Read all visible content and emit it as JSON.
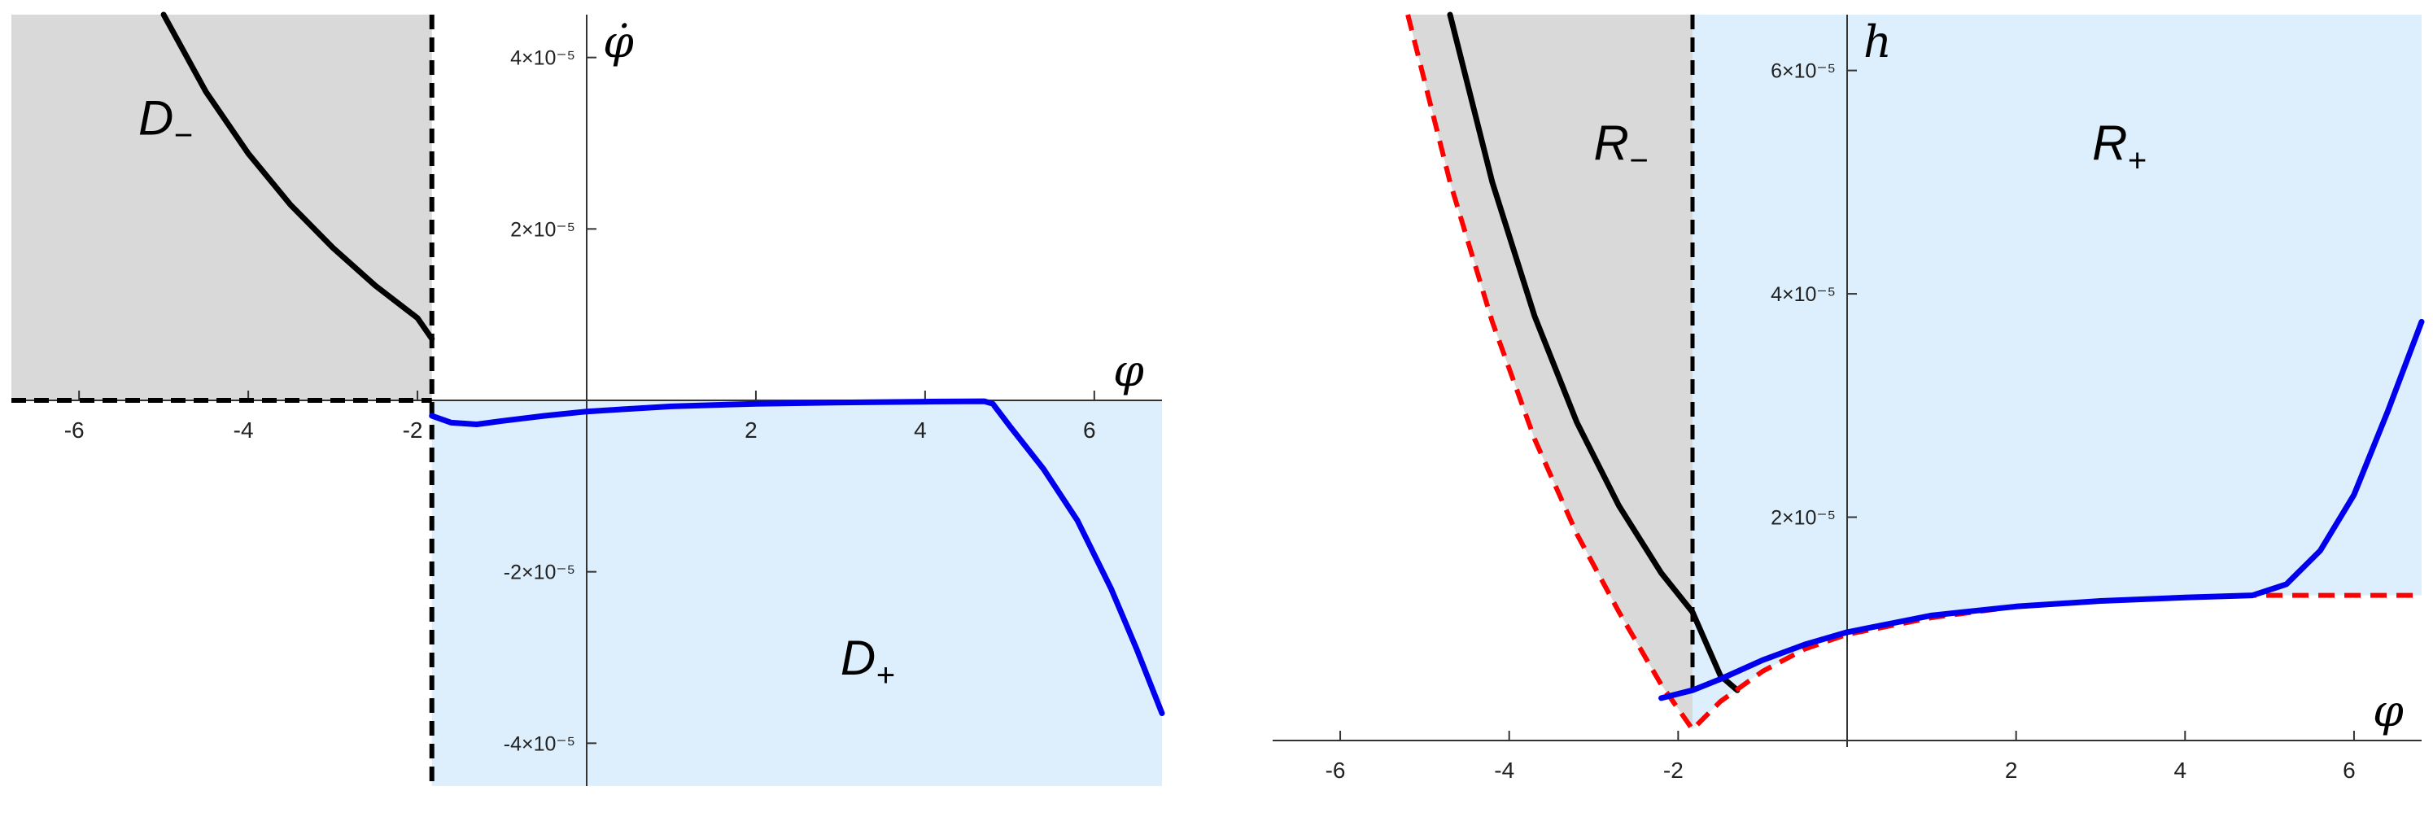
{
  "chart_data": [
    {
      "type": "line",
      "xlabel": "φ",
      "ylabel": "φ̇",
      "xlim": [
        -6.8,
        6.8
      ],
      "ylim": [
        -4.5e-05,
        4.5e-05
      ],
      "x_ticks": [
        -6,
        -4,
        -2,
        2,
        4,
        6
      ],
      "x_tick_labels": [
        "-6",
        "-4",
        "-2",
        "2",
        "4",
        "6"
      ],
      "y_ticks": [
        -4e-05,
        -2e-05,
        2e-05,
        4e-05
      ],
      "y_tick_labels": [
        "-4×10⁻⁵",
        "-2×10⁻⁵",
        "2×10⁻⁵",
        "4×10⁻⁵"
      ],
      "regions": [
        {
          "label": "D",
          "sign": "−",
          "color": "#d9d9d9",
          "x_range": [
            -6.8,
            -1.83
          ],
          "y_range": [
            0,
            4.5e-05
          ]
        },
        {
          "label": "D",
          "sign": "+",
          "color": "#ddeefc",
          "x_range": [
            -1.83,
            6.8
          ],
          "y_range": [
            -4.5e-05,
            0
          ]
        }
      ],
      "boundary_color": "#000000",
      "series": [
        {
          "color": "#000000",
          "style": "solid",
          "x": [
            -5.0,
            -4.5,
            -4.0,
            -3.5,
            -3.0,
            -2.5,
            -2.0,
            -1.83
          ],
          "y": [
            4.5e-05,
            3.6e-05,
            2.88e-05,
            2.28e-05,
            1.78e-05,
            1.34e-05,
            9.6e-06,
            7.2e-06
          ]
        },
        {
          "color": "#0000ee",
          "style": "solid",
          "x": [
            -1.83,
            -1.6,
            -1.3,
            -1.0,
            -0.5,
            0,
            0.5,
            1.0,
            2.0,
            3.0,
            4.0,
            4.7,
            4.8,
            5.0,
            5.4,
            5.8,
            6.2,
            6.5,
            6.8
          ],
          "y": [
            -1.8e-06,
            -2.6e-06,
            -2.8e-06,
            -2.4e-06,
            -1.8e-06,
            -1.3e-06,
            -1e-06,
            -7e-07,
            -4e-07,
            -2.5e-07,
            -1.5e-07,
            -1e-07,
            -4e-07,
            -3e-06,
            -8e-06,
            -1.4e-05,
            -2.2e-05,
            -2.9e-05,
            -3.65e-05
          ]
        }
      ]
    },
    {
      "type": "line",
      "xlabel": "φ",
      "ylabel": "h",
      "xlim": [
        -6.8,
        6.8
      ],
      "ylim": [
        0,
        6.5e-05
      ],
      "x_ticks": [
        -6,
        -4,
        -2,
        2,
        4,
        6
      ],
      "x_tick_labels": [
        "-6",
        "-4",
        "-2",
        "2",
        "4",
        "6"
      ],
      "y_ticks": [
        2e-05,
        4e-05,
        6e-05
      ],
      "y_tick_labels": [
        "2×10⁻⁵",
        "4×10⁻⁵",
        "6×10⁻⁵"
      ],
      "regions": [
        {
          "label": "R",
          "sign": "−",
          "color": "#d9d9d9",
          "x_range": [
            -4.9,
            -1.83
          ]
        },
        {
          "label": "R",
          "sign": "+",
          "color": "#ddeefc",
          "x_range": [
            -1.83,
            6.8
          ]
        }
      ],
      "boundary_color": "#000000",
      "series": [
        {
          "color": "#000000",
          "style": "solid",
          "x": [
            -4.7,
            -4.2,
            -3.7,
            -3.2,
            -2.7,
            -2.2,
            -1.83,
            -1.5,
            -1.3
          ],
          "y": [
            6.5e-05,
            5e-05,
            3.8e-05,
            2.85e-05,
            2.1e-05,
            1.5e-05,
            1.15e-05,
            5.8e-06,
            4.5e-06
          ]
        },
        {
          "color": "#ff0000",
          "style": "dashed",
          "x": [
            -5.2,
            -4.7,
            -4.2,
            -3.7,
            -3.2,
            -2.7,
            -2.2,
            -1.83,
            -1.5,
            -1.0,
            -0.5,
            0,
            1.0,
            2.0,
            3.0,
            4.0,
            4.8,
            5.2,
            5.6,
            6.0,
            6.4,
            6.8
          ],
          "y": [
            6.5e-05,
            5e-05,
            3.75e-05,
            2.7e-05,
            1.85e-05,
            1.15e-05,
            5e-06,
            1e-06,
            3.5e-06,
            6.2e-06,
            8.2e-06,
            9.5e-06,
            1.1e-05,
            1.2e-05,
            1.25e-05,
            1.28e-05,
            1.3e-05,
            1.3e-05,
            1.3e-05,
            1.3e-05,
            1.3e-05,
            1.3e-05
          ]
        },
        {
          "color": "#0000ee",
          "style": "solid",
          "x": [
            -2.2,
            -1.83,
            -1.5,
            -1.0,
            -0.5,
            0,
            1.0,
            2.0,
            3.0,
            4.0,
            4.8,
            5.2,
            5.6,
            6.0,
            6.4,
            6.8
          ],
          "y": [
            3.8e-06,
            4.5e-06,
            5.5e-06,
            7.2e-06,
            8.6e-06,
            9.7e-06,
            1.12e-05,
            1.2e-05,
            1.25e-05,
            1.28e-05,
            1.3e-05,
            1.4e-05,
            1.7e-05,
            2.2e-05,
            2.95e-05,
            3.75e-05
          ]
        }
      ]
    }
  ]
}
